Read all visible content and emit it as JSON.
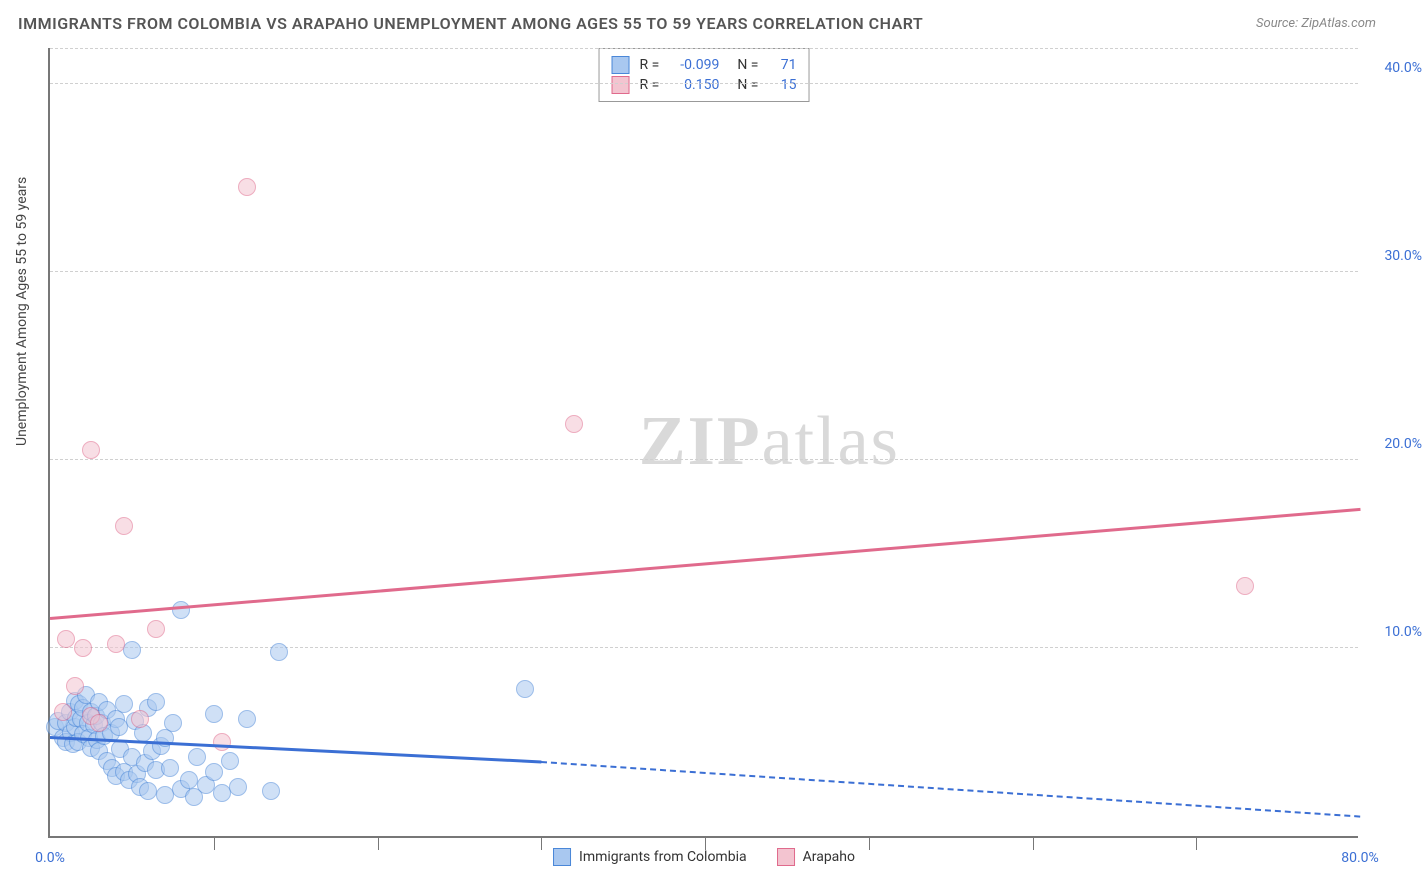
{
  "title": "IMMIGRANTS FROM COLOMBIA VS ARAPAHO UNEMPLOYMENT AMONG AGES 55 TO 59 YEARS CORRELATION CHART",
  "source": "Source: ZipAtlas.com",
  "y_axis_label": "Unemployment Among Ages 55 to 59 years",
  "watermark_bold": "ZIP",
  "watermark_light": "atlas",
  "chart": {
    "type": "scatter",
    "xlim": [
      0,
      80
    ],
    "ylim": [
      0,
      42
    ],
    "x_ticks": [
      0,
      80
    ],
    "x_tick_labels": [
      "0.0%",
      "80.0%"
    ],
    "x_minor_ticks": [
      10,
      20,
      30,
      40,
      50,
      60,
      70
    ],
    "y_gridlines": [
      10,
      20,
      30,
      40
    ],
    "y_tick_labels": [
      "10.0%",
      "20.0%",
      "30.0%",
      "40.0%"
    ],
    "background_color": "#ffffff",
    "grid_color": "#d0d0d0",
    "axis_color": "#777777",
    "tick_label_color": "#3b6fd4"
  },
  "series": [
    {
      "name": "Immigrants from Colombia",
      "fill": "#a9c8f0",
      "stroke": "#4a87d8",
      "line_color": "#3b6fd4",
      "R": "-0.099",
      "N": "71",
      "marker_radius": 9,
      "marker_opacity": 0.55,
      "trend": {
        "x1": 0,
        "y1": 5.2,
        "x2": 30,
        "y2": 3.9,
        "dash_x2": 80,
        "dash_y2": 1.0
      },
      "points": [
        [
          0.3,
          5.8
        ],
        [
          0.5,
          6.1
        ],
        [
          0.8,
          5.2
        ],
        [
          1.0,
          6.0
        ],
        [
          1.0,
          5.0
        ],
        [
          1.2,
          6.6
        ],
        [
          1.3,
          5.5
        ],
        [
          1.4,
          4.9
        ],
        [
          1.5,
          7.2
        ],
        [
          1.5,
          5.8
        ],
        [
          1.6,
          6.3
        ],
        [
          1.7,
          5.0
        ],
        [
          1.8,
          7.0
        ],
        [
          1.9,
          6.2
        ],
        [
          2.0,
          5.4
        ],
        [
          2.0,
          6.8
        ],
        [
          2.2,
          7.5
        ],
        [
          2.3,
          6.0
        ],
        [
          2.4,
          5.2
        ],
        [
          2.5,
          6.6
        ],
        [
          2.5,
          4.7
        ],
        [
          2.7,
          5.9
        ],
        [
          2.8,
          6.4
        ],
        [
          2.9,
          5.1
        ],
        [
          3.0,
          7.1
        ],
        [
          3.0,
          4.5
        ],
        [
          3.2,
          6.0
        ],
        [
          3.3,
          5.3
        ],
        [
          3.5,
          6.7
        ],
        [
          3.5,
          4.0
        ],
        [
          3.7,
          5.5
        ],
        [
          3.8,
          3.6
        ],
        [
          4.0,
          6.2
        ],
        [
          4.0,
          3.2
        ],
        [
          4.2,
          5.8
        ],
        [
          4.3,
          4.6
        ],
        [
          4.5,
          3.4
        ],
        [
          4.5,
          7.0
        ],
        [
          4.8,
          3.0
        ],
        [
          5.0,
          4.2
        ],
        [
          5.0,
          9.9
        ],
        [
          5.2,
          6.1
        ],
        [
          5.3,
          3.3
        ],
        [
          5.5,
          2.6
        ],
        [
          5.7,
          5.5
        ],
        [
          5.8,
          3.9
        ],
        [
          6.0,
          6.8
        ],
        [
          6.0,
          2.4
        ],
        [
          6.2,
          4.5
        ],
        [
          6.5,
          3.5
        ],
        [
          6.5,
          7.1
        ],
        [
          6.8,
          4.8
        ],
        [
          7.0,
          2.2
        ],
        [
          7.0,
          5.2
        ],
        [
          7.3,
          3.6
        ],
        [
          7.5,
          6.0
        ],
        [
          8.0,
          2.5
        ],
        [
          8.0,
          12.0
        ],
        [
          8.5,
          3.0
        ],
        [
          8.8,
          2.1
        ],
        [
          9.0,
          4.2
        ],
        [
          9.5,
          2.7
        ],
        [
          10.0,
          3.4
        ],
        [
          10.0,
          6.5
        ],
        [
          10.5,
          2.3
        ],
        [
          11.0,
          4.0
        ],
        [
          11.5,
          2.6
        ],
        [
          12.0,
          6.2
        ],
        [
          13.5,
          2.4
        ],
        [
          14.0,
          9.8
        ],
        [
          29.0,
          7.8
        ]
      ]
    },
    {
      "name": "Arapaho",
      "fill": "#f3c4d0",
      "stroke": "#e06a8c",
      "line_color": "#e06a8c",
      "R": "0.150",
      "N": "15",
      "marker_radius": 9,
      "marker_opacity": 0.55,
      "trend": {
        "x1": 0,
        "y1": 11.5,
        "x2": 80,
        "y2": 17.3
      },
      "points": [
        [
          0.8,
          6.6
        ],
        [
          1.0,
          10.5
        ],
        [
          1.5,
          8.0
        ],
        [
          2.0,
          10.0
        ],
        [
          2.5,
          6.4
        ],
        [
          2.5,
          20.5
        ],
        [
          3.0,
          6.0
        ],
        [
          4.0,
          10.2
        ],
        [
          4.5,
          16.5
        ],
        [
          5.5,
          6.2
        ],
        [
          6.5,
          11.0
        ],
        [
          10.5,
          5.0
        ],
        [
          12.0,
          34.5
        ],
        [
          32.0,
          21.9
        ],
        [
          73.0,
          13.3
        ]
      ]
    }
  ],
  "stats_box": {
    "rows": [
      {
        "swatch_fill": "#a9c8f0",
        "swatch_stroke": "#4a87d8",
        "R_label": "R =",
        "R": "-0.099",
        "N_label": "N =",
        "N": "71"
      },
      {
        "swatch_fill": "#f3c4d0",
        "swatch_stroke": "#e06a8c",
        "R_label": "R =",
        "R": "0.150",
        "N_label": "N =",
        "N": "15"
      }
    ]
  },
  "bottom_legend": [
    {
      "swatch_fill": "#a9c8f0",
      "swatch_stroke": "#4a87d8",
      "label": "Immigrants from Colombia"
    },
    {
      "swatch_fill": "#f3c4d0",
      "swatch_stroke": "#e06a8c",
      "label": "Arapaho"
    }
  ]
}
